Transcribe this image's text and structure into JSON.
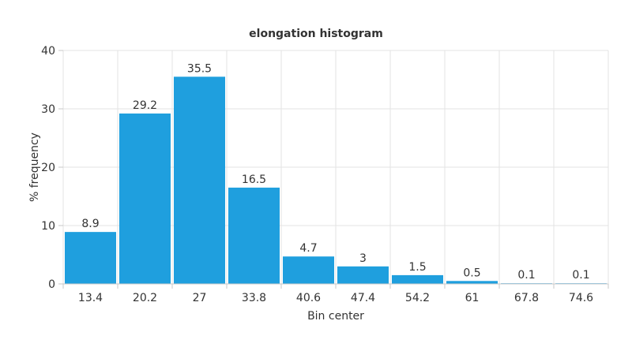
{
  "chart_data": {
    "type": "bar",
    "title": "elongation histogram",
    "xlabel": "Bin center",
    "ylabel": "% frequency",
    "categories": [
      "13.4",
      "20.2",
      "27",
      "33.8",
      "40.6",
      "47.4",
      "54.2",
      "61",
      "67.8",
      "74.6"
    ],
    "values": [
      8.9,
      29.2,
      35.5,
      16.5,
      4.7,
      3,
      1.5,
      0.5,
      0.1,
      0.1
    ],
    "value_labels": [
      "8.9",
      "29.2",
      "35.5",
      "16.5",
      "4.7",
      "3",
      "1.5",
      "0.5",
      "0.1",
      "0.1"
    ],
    "ylim": [
      0,
      40
    ],
    "yticks": [
      "0",
      "10",
      "20",
      "30",
      "40"
    ],
    "grid": true,
    "bar_color": "#1f9fde"
  }
}
